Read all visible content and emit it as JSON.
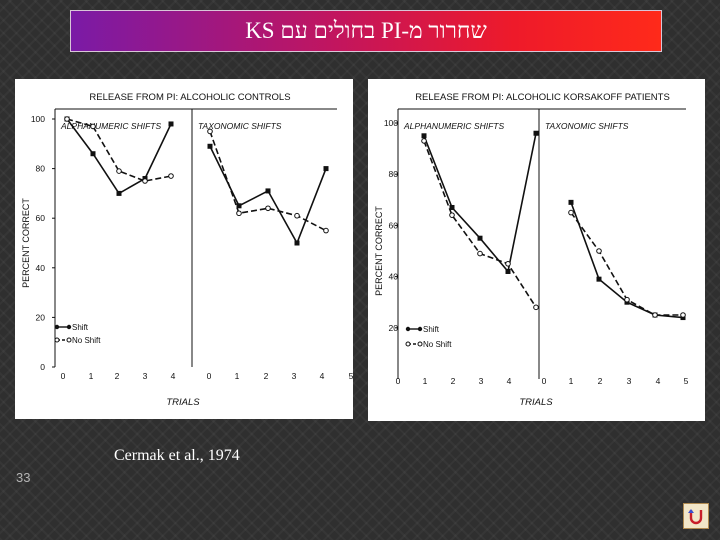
{
  "slide": {
    "title": "שחרור מ-PI בחולים עם KS",
    "citation": "Cermak et al., 1974",
    "slide_number": "33"
  },
  "return_icon": "return-arrow-icon",
  "colors": {
    "banner_start": "#7a1aa6",
    "banner_end": "#ff2a1a",
    "background": "#2f2f2f",
    "panel": "#ffffff",
    "ink": "#111111"
  },
  "chart_data": [
    {
      "type": "line",
      "title": "RELEASE FROM PI: ALCOHOLIC CONTROLS",
      "ylabel": "PERCENT CORRECT",
      "xlabel": "TRIALS",
      "ylim": [
        0,
        100
      ],
      "yticks": [
        "0",
        "20",
        "40",
        "60",
        "80",
        "100"
      ],
      "legend": {
        "position": "bottom-left",
        "entries": [
          "Shift",
          "No Shift"
        ]
      },
      "subplots": [
        {
          "title": "ALPHANUMERIC SHIFTS",
          "x": [
            1,
            2,
            3,
            4,
            5
          ],
          "xticks": [
            "0",
            "1",
            "2",
            "3",
            "4"
          ],
          "series": [
            {
              "name": "Shift",
              "style": "solid-filled",
              "values": [
                100,
                86,
                70,
                76,
                98
              ]
            },
            {
              "name": "No Shift",
              "style": "dashed-open",
              "values": [
                100,
                97,
                79,
                75,
                77
              ]
            }
          ]
        },
        {
          "title": "TAXONOMIC SHIFTS",
          "x": [
            1,
            2,
            3,
            4,
            5
          ],
          "xticks": [
            "0",
            "1",
            "2",
            "3",
            "4",
            "5"
          ],
          "series": [
            {
              "name": "Shift",
              "style": "solid-filled",
              "values": [
                89,
                65,
                71,
                50,
                80
              ]
            },
            {
              "name": "No Shift",
              "style": "dashed-open",
              "values": [
                95,
                62,
                64,
                61,
                55
              ]
            }
          ]
        }
      ]
    },
    {
      "type": "line",
      "title": "RELEASE FROM PI: ALCOHOLIC KORSAKOFF PATIENTS",
      "ylabel": "PERCENT CORRECT",
      "xlabel": "TRIALS",
      "ylim": [
        0,
        100
      ],
      "yticks": [
        "20",
        "40",
        "60",
        "80",
        "100"
      ],
      "legend": {
        "position": "bottom-left",
        "entries": [
          "Shift",
          "No Shift"
        ]
      },
      "subplots": [
        {
          "title": "ALPHANUMERIC SHIFTS",
          "x": [
            1,
            2,
            3,
            4,
            5
          ],
          "xticks": [
            "0",
            "1",
            "2",
            "3",
            "4"
          ],
          "series": [
            {
              "name": "Shift",
              "style": "solid-filled",
              "values": [
                95,
                67,
                55,
                42,
                96
              ]
            },
            {
              "name": "No Shift",
              "style": "dashed-open",
              "values": [
                93,
                64,
                49,
                45,
                28
              ]
            }
          ]
        },
        {
          "title": "TAXONOMIC SHIFTS",
          "x": [
            1,
            2,
            3,
            4,
            5
          ],
          "xticks": [
            "0",
            "1",
            "2",
            "3",
            "4",
            "5"
          ],
          "series": [
            {
              "name": "Shift",
              "style": "solid-filled",
              "values": [
                69,
                39,
                30,
                25,
                24
              ]
            },
            {
              "name": "No Shift",
              "style": "dashed-open",
              "values": [
                65,
                50,
                31,
                25,
                25
              ]
            }
          ]
        }
      ]
    }
  ]
}
